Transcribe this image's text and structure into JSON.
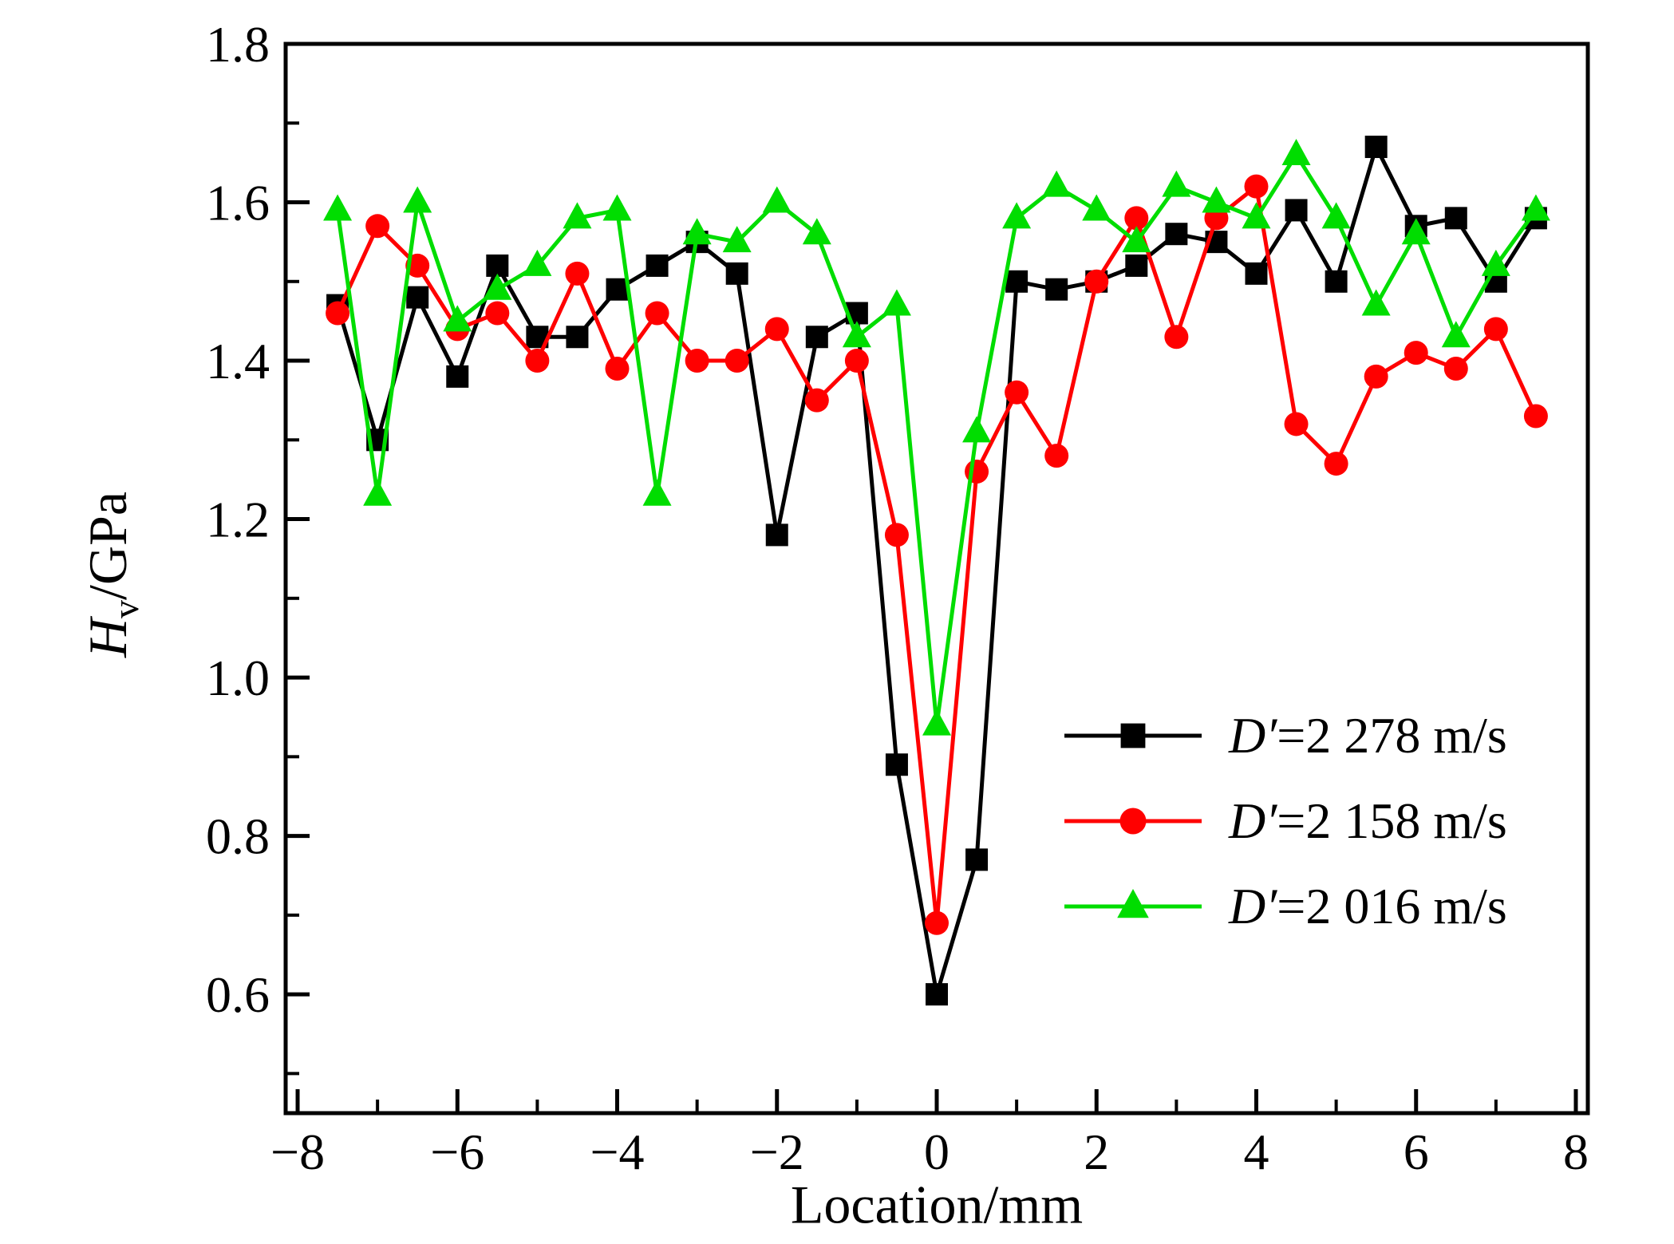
{
  "chart_data": {
    "type": "line",
    "title": "",
    "xlabel": "Location/mm",
    "ylabel": "Hv/GPa",
    "ylabel_parts": {
      "symbol": "H",
      "subscript": "v",
      "rest": "/GPa"
    },
    "xlim": [
      -8.15,
      8.15
    ],
    "ylim": [
      0.45,
      1.8
    ],
    "grid": false,
    "legend_position": "center-right",
    "xticks": {
      "major": [
        -8,
        -6,
        -4,
        -2,
        0,
        2,
        4,
        6,
        8
      ],
      "labels": [
        "−8",
        "−6",
        "−4",
        "−2",
        "0",
        "2",
        "4",
        "6",
        "8"
      ],
      "minor": [
        -7,
        -5,
        -3,
        -1,
        1,
        3,
        5,
        7
      ]
    },
    "yticks": {
      "major": [
        0.6,
        0.8,
        1.0,
        1.2,
        1.4,
        1.6,
        1.8
      ],
      "labels": [
        "0.6",
        "0.8",
        "1.0",
        "1.2",
        "1.4",
        "1.6",
        "1.8"
      ],
      "minor": [
        0.5,
        0.7,
        0.9,
        1.1,
        1.3,
        1.5,
        1.7
      ]
    },
    "x": [
      -7.5,
      -7.0,
      -6.5,
      -6.0,
      -5.5,
      -5.0,
      -4.5,
      -4.0,
      -3.5,
      -3.0,
      -2.5,
      -2.0,
      -1.5,
      -1.0,
      -0.5,
      0.0,
      0.5,
      1.0,
      1.5,
      2.0,
      2.5,
      3.0,
      3.5,
      4.0,
      4.5,
      5.0,
      5.5,
      6.0,
      6.5,
      7.0,
      7.5
    ],
    "series": [
      {
        "name": "D′=2 278 m/s",
        "legend_prefix": "D′",
        "legend_rest": "=2 278 m/s",
        "color": "#000000",
        "marker": "square",
        "values": [
          1.47,
          1.3,
          1.48,
          1.38,
          1.52,
          1.43,
          1.43,
          1.49,
          1.52,
          1.55,
          1.51,
          1.18,
          1.43,
          1.46,
          0.89,
          0.6,
          0.77,
          1.5,
          1.49,
          1.5,
          1.52,
          1.56,
          1.55,
          1.51,
          1.59,
          1.5,
          1.67,
          1.57,
          1.58,
          1.5,
          1.58
        ]
      },
      {
        "name": "D′=2 158 m/s",
        "legend_prefix": "D′",
        "legend_rest": "=2 158 m/s",
        "color": "#ff0000",
        "marker": "circle",
        "values": [
          1.46,
          1.57,
          1.52,
          1.44,
          1.46,
          1.4,
          1.51,
          1.39,
          1.46,
          1.4,
          1.4,
          1.44,
          1.35,
          1.4,
          1.18,
          0.69,
          1.26,
          1.36,
          1.28,
          1.5,
          1.58,
          1.43,
          1.58,
          1.62,
          1.32,
          1.27,
          1.38,
          1.41,
          1.39,
          1.44,
          1.33
        ]
      },
      {
        "name": "D′=2 016 m/s",
        "legend_prefix": "D′",
        "legend_rest": "=2 016 m/s",
        "color": "#00dd00",
        "marker": "triangle",
        "values": [
          1.59,
          1.23,
          1.6,
          1.45,
          1.49,
          1.52,
          1.58,
          1.59,
          1.23,
          1.56,
          1.55,
          1.6,
          1.56,
          1.43,
          1.47,
          0.94,
          1.31,
          1.58,
          1.62,
          1.59,
          1.55,
          1.62,
          1.6,
          1.58,
          1.66,
          1.58,
          1.47,
          1.56,
          1.43,
          1.52,
          1.59
        ]
      }
    ]
  }
}
